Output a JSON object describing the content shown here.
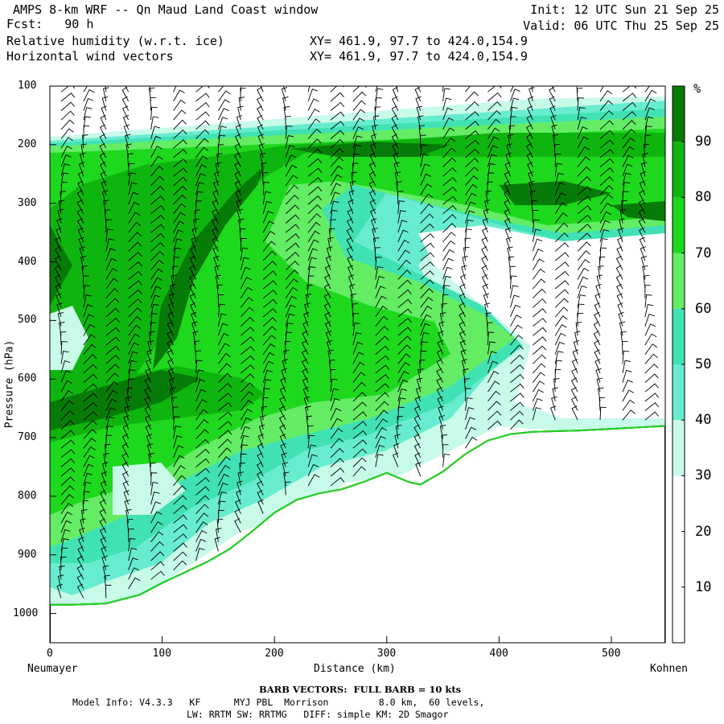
{
  "header": {
    "title": "AMPS 8-km WRF -- Qn Maud Land Coast window",
    "forecast": "Fcst:   90 h",
    "field1": "Relative humidity (w.r.t. ice)",
    "field2": "Horizontal wind vectors",
    "xy1": "XY= 461.9, 97.7 to 424.0,154.9",
    "xy2": "XY= 461.9, 97.7 to 424.0,154.9",
    "init": "Init: 12 UTC Sun 21 Sep 25",
    "valid": "Valid: 06 UTC Thu 25 Sep 25"
  },
  "footer": {
    "barb_note": "BARB VECTORS:  FULL BARB = 10 kts",
    "model_info_1": "Model Info: V4.3.3   KF      MYJ PBL  Morrison         8.0 km,  60 levels,",
    "model_info_2": "LW: RRTM SW: RRTMG   DIFF: simple KM: 2D Smagor"
  },
  "chart_data": {
    "type": "heatmap",
    "title": "Relative humidity (w.r.t. ice)",
    "xlabel": "Distance (km)",
    "ylabel": "Pressure (hPa)",
    "x_start_label": "Neumayer",
    "x_end_label": "Kohnen",
    "xlim": [
      0,
      548
    ],
    "ylim": [
      1050,
      100
    ],
    "x_ticks": [
      "0",
      "100",
      "200",
      "300",
      "400",
      "500"
    ],
    "y_ticks": [
      "100",
      "200",
      "300",
      "400",
      "500",
      "600",
      "700",
      "800",
      "900",
      "1000"
    ],
    "colorbar": {
      "unit": "%",
      "levels": [
        30,
        40,
        50,
        60,
        70,
        80,
        90
      ],
      "tick_labels": [
        "10",
        "20",
        "30",
        "40",
        "50",
        "60",
        "70",
        "80",
        "90"
      ],
      "colors": [
        "#ffffff",
        "#c8fae8",
        "#68ecd0",
        "#40e2b4",
        "#64ec64",
        "#1ed81e",
        "#0fb50f",
        "#077b07"
      ]
    },
    "terrain_pressure": {
      "distance_km": [
        0,
        20,
        50,
        80,
        100,
        120,
        140,
        160,
        180,
        200,
        220,
        240,
        260,
        280,
        300,
        320,
        330,
        350,
        370,
        390,
        410,
        430,
        470,
        500,
        548
      ],
      "pressure_hpa": [
        985,
        985,
        983,
        968,
        948,
        930,
        912,
        890,
        860,
        828,
        806,
        795,
        788,
        775,
        760,
        776,
        780,
        758,
        728,
        705,
        694,
        690,
        688,
        685,
        680
      ]
    }
  }
}
